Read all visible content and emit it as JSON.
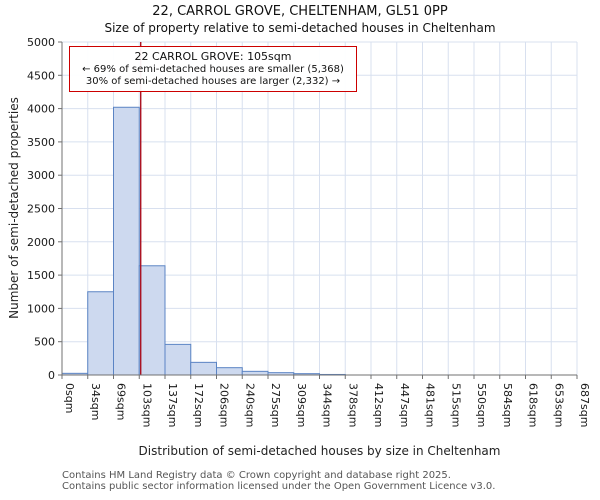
{
  "title": "22, CARROL GROVE, CHELTENHAM, GL51 0PP",
  "subtitle": "Size of property relative to semi-detached houses in Cheltenham",
  "annotation": {
    "line1": "22 CARROL GROVE: 105sqm",
    "line2": "← 69% of semi-detached houses are smaller (5,368)",
    "line3": "30% of semi-detached houses are larger (2,332) →"
  },
  "footer": {
    "line1": "Contains HM Land Registry data © Crown copyright and database right 2025.",
    "line2": "Contains public sector information licensed under the Open Government Licence v3.0."
  },
  "chart_data": {
    "type": "bar",
    "title": "22, CARROL GROVE, CHELTENHAM, GL51 0PP",
    "subtitle": "Size of property relative to semi-detached houses in Cheltenham",
    "xlabel": "Distribution of semi-detached houses by size in Cheltenham",
    "ylabel": "Number of semi-detached properties",
    "categories": [
      "0sqm",
      "34sqm",
      "69sqm",
      "103sqm",
      "137sqm",
      "172sqm",
      "206sqm",
      "240sqm",
      "275sqm",
      "309sqm",
      "344sqm",
      "378sqm",
      "412sqm",
      "447sqm",
      "481sqm",
      "515sqm",
      "550sqm",
      "584sqm",
      "618sqm",
      "653sqm",
      "687sqm"
    ],
    "values": [
      25,
      1250,
      4020,
      1640,
      460,
      190,
      110,
      55,
      35,
      20,
      8,
      0,
      0,
      0,
      0,
      0,
      0,
      0,
      0,
      0
    ],
    "ylim": [
      0,
      5000
    ],
    "ytick_step": 500,
    "grid": true,
    "marker": {
      "label": "22 CARROL GROVE",
      "value_sqm": 105,
      "axis_max_sqm": 687,
      "color": "#aa1122"
    },
    "colors": {
      "bar_fill": "#cdd9ef",
      "bar_stroke": "#5b84c4",
      "grid": "#d8e0ef",
      "spine": "#707070"
    }
  }
}
